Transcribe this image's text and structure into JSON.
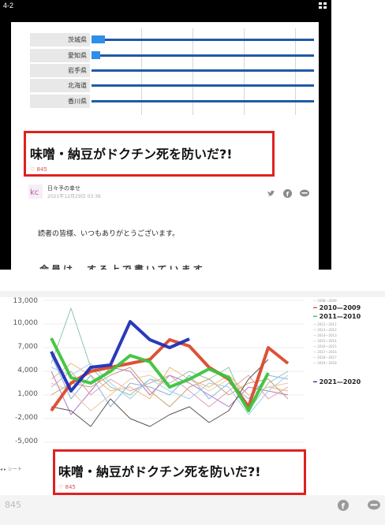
{
  "top": {
    "label": "4-2",
    "rows": [
      {
        "name": "茨城県",
        "bar": 0.06
      },
      {
        "name": "愛知県",
        "bar": 0.04
      },
      {
        "name": "岩手県",
        "bar": 0
      },
      {
        "name": "北海道",
        "bar": 0
      },
      {
        "name": "香川県",
        "bar": 0
      }
    ],
    "title": "味噌・納豆がドクチン死を防いだ?!",
    "likes": "845",
    "author": "日々予の幸せ",
    "date": "2021年12月29日 03:36",
    "greeting": "読者の皆様、いつもありがとうございます。",
    "cut_text": "会員は、する上で書いています"
  },
  "bottom": {
    "title": "味噌・納豆がドクチン死を防いだ?!",
    "likes": "845",
    "strip_label": "シート",
    "footer_count": "845"
  },
  "chart_data": {
    "type": "line",
    "y_ticks": [
      "13,000",
      "10,000",
      "7,000",
      "4,000",
      "1,000",
      "-2,000",
      "-5,000"
    ],
    "ylim": [
      -5000,
      13000
    ],
    "x": [
      1,
      2,
      3,
      4,
      5,
      6,
      7,
      8,
      9,
      10,
      11,
      12,
      13
    ],
    "legend": [
      {
        "name": "2008—2009",
        "emphasis": false
      },
      {
        "name": "2010—2009",
        "emphasis": true
      },
      {
        "name": "2011—2010",
        "emphasis": true
      },
      {
        "name": "2012—2011",
        "emphasis": false
      },
      {
        "name": "2013—2012",
        "emphasis": false
      },
      {
        "name": "2014—2013",
        "emphasis": false
      },
      {
        "name": "2015—2014",
        "emphasis": false
      },
      {
        "name": "2016—2015",
        "emphasis": false
      },
      {
        "name": "2017—2016",
        "emphasis": false
      },
      {
        "name": "2018—2017",
        "emphasis": false
      },
      {
        "name": "2019—2018",
        "emphasis": false
      },
      {
        "name": "2021—2020",
        "emphasis": true
      }
    ],
    "series": [
      {
        "name": "2010—2009",
        "color": "#d94a2c",
        "width": 4,
        "values": [
          -1000,
          2500,
          4000,
          4500,
          5000,
          5500,
          8000,
          7200,
          4500,
          3000,
          -500,
          7000,
          5000
        ]
      },
      {
        "name": "2011—2010",
        "color": "#3cc43c",
        "width": 4,
        "values": [
          8200,
          3200,
          2500,
          4000,
          6000,
          5200,
          2000,
          3000,
          4300,
          3200,
          -1000,
          3800,
          null
        ]
      },
      {
        "name": "2021—2020",
        "color": "#1f2fb5",
        "width": 4,
        "values": [
          6500,
          1500,
          4500,
          4800,
          10300,
          8000,
          7000,
          8100,
          null,
          null,
          null,
          null,
          null
        ]
      },
      {
        "color": "#8cc5a8",
        "width": 1,
        "values": [
          5000,
          12000,
          4500,
          2000,
          1000,
          3000,
          2500,
          4000,
          3000,
          4500,
          -1000,
          2500,
          4000
        ]
      },
      {
        "color": "#f0b46e",
        "width": 1,
        "values": [
          3000,
          5000,
          3500,
          1500,
          2000,
          500,
          4500,
          3000,
          2000,
          3500,
          1000,
          2000,
          1500
        ]
      },
      {
        "color": "#b07ac8",
        "width": 1,
        "values": [
          4000,
          -1500,
          1500,
          4500,
          4000,
          1000,
          3500,
          2500,
          1000,
          -500,
          2000,
          1500,
          1000
        ]
      },
      {
        "color": "#e0a0b0",
        "width": 1,
        "values": [
          2000,
          4000,
          1000,
          3000,
          1500,
          2500,
          3500,
          1500,
          -500,
          1500,
          3500,
          500,
          2000
        ]
      },
      {
        "color": "#8ab4e0",
        "width": 1,
        "values": [
          6000,
          500,
          3500,
          -500,
          2500,
          2000,
          1000,
          3500,
          500,
          2500,
          500,
          3500,
          3000
        ]
      },
      {
        "color": "#c8a070",
        "width": 1,
        "values": [
          1000,
          2500,
          2000,
          3500,
          4500,
          1500,
          -500,
          2000,
          3000,
          1000,
          2500,
          3000,
          500
        ]
      },
      {
        "color": "#a0d0e8",
        "width": 1,
        "values": [
          4500,
          3500,
          5000,
          2500,
          500,
          3000,
          1500,
          500,
          2500,
          2000,
          -1500,
          1500,
          3500
        ]
      },
      {
        "color": "#e8c8a0",
        "width": 1,
        "values": [
          2500,
          1500,
          -1000,
          1000,
          3000,
          3500,
          2000,
          3000,
          1500,
          3000,
          1000,
          2000,
          2500
        ]
      },
      {
        "color": "#605050",
        "width": 1,
        "values": [
          -500,
          -1000,
          -3000,
          500,
          -2000,
          -3000,
          -1500,
          -500,
          -2500,
          -1000,
          3000,
          5500,
          null
        ]
      }
    ]
  }
}
